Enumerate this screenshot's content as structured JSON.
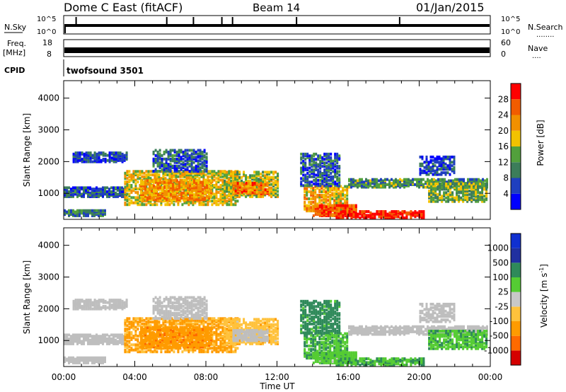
{
  "header": {
    "title": "Dome C East (fitACF)",
    "beam": "Beam 14",
    "date": "01/Jan/2015"
  },
  "status_panels": {
    "nsky_label": "N.Sky",
    "nsearch_label": "N.Search",
    "nsearch_dots": "........",
    "nsky_ticks": [
      "10^5",
      "10^0"
    ],
    "nsearch_ticks": [
      "10^5",
      "10^0"
    ],
    "freq_label_1": "Freq.",
    "freq_label_2": "[MHz]",
    "freq_ticks": [
      "18",
      "8"
    ],
    "nave_label": "Nave",
    "nave_dots": "....",
    "nave_ticks": [
      "60",
      "0"
    ],
    "cpid_label": "CPID",
    "cpid_value": "twofsound 3501"
  },
  "colors": {
    "power_scale": [
      "#0000ff",
      "#1f3fbf",
      "#3c7d5a",
      "#52a03c",
      "#f2c200",
      "#f29000",
      "#f25c00",
      "#ff0000"
    ],
    "velocity_scale": [
      "#d40000",
      "#ff6a00",
      "#ff9b00",
      "#ffc23c",
      "#c8c8c8",
      "#55cc33",
      "#2f8a5a",
      "#2030a0",
      "#1030d0"
    ],
    "ground_scatter": "#bebebe"
  },
  "chart_data": [
    {
      "type": "heatmap",
      "panel": "power",
      "xlabel": "",
      "ylabel": "Slant Range [km]",
      "xlim": [
        "00:00",
        "24:00"
      ],
      "ylim": [
        180,
        4550
      ],
      "x_ticks": [
        "00:00",
        "04:00",
        "08:00",
        "12:00",
        "16:00",
        "20:00",
        "00:00"
      ],
      "y_ticks": [
        1000,
        2000,
        3000,
        4000
      ],
      "colorbar": {
        "label": "Power [dB]",
        "ticks": [
          "28",
          "24",
          "20",
          "16",
          "12",
          "8",
          "4"
        ],
        "range": [
          0,
          32
        ]
      },
      "regions": [
        {
          "t0": 0.0,
          "t1": 2.3,
          "r0": 250,
          "r1": 420,
          "value": 10
        },
        {
          "t0": 0.0,
          "t1": 3.5,
          "r0": 850,
          "r1": 1150,
          "value": 7
        },
        {
          "t0": 0.5,
          "t1": 3.5,
          "r0": 1950,
          "r1": 2250,
          "value": 6
        },
        {
          "t0": 3.4,
          "t1": 9.8,
          "r0": 600,
          "r1": 1700,
          "value": 18
        },
        {
          "t0": 4.3,
          "t1": 8.3,
          "r0": 750,
          "r1": 1400,
          "value": 22
        },
        {
          "t0": 5.0,
          "t1": 8.0,
          "r0": 1650,
          "r1": 2350,
          "value": 7
        },
        {
          "t0": 9.0,
          "t1": 12.0,
          "r0": 850,
          "r1": 1650,
          "value": 16
        },
        {
          "t0": 9.5,
          "t1": 11.5,
          "r0": 950,
          "r1": 1300,
          "value": 24
        },
        {
          "t0": 13.5,
          "t1": 16.0,
          "r0": 400,
          "r1": 1200,
          "value": 20
        },
        {
          "t0": 14.0,
          "t1": 16.5,
          "r0": 250,
          "r1": 600,
          "value": 26
        },
        {
          "t0": 15.3,
          "t1": 20.3,
          "r0": 180,
          "r1": 420,
          "value": 30
        },
        {
          "t0": 13.3,
          "t1": 15.5,
          "r0": 1200,
          "r1": 2200,
          "value": 8
        },
        {
          "t0": 16.0,
          "t1": 23.8,
          "r0": 1150,
          "r1": 1400,
          "value": 11
        },
        {
          "t0": 20.5,
          "t1": 23.8,
          "r0": 700,
          "r1": 1300,
          "value": 14
        },
        {
          "t0": 20.0,
          "t1": 22.0,
          "r0": 1550,
          "r1": 2150,
          "value": 6
        }
      ]
    },
    {
      "type": "heatmap",
      "panel": "velocity",
      "xlabel": "Time UT",
      "ylabel": "Slant Range [km]",
      "xlim": [
        "00:00",
        "24:00"
      ],
      "ylim": [
        180,
        4550
      ],
      "x_ticks": [
        "00:00",
        "04:00",
        "08:00",
        "12:00",
        "16:00",
        "20:00",
        "00:00"
      ],
      "y_ticks": [
        1000,
        2000,
        3000,
        4000
      ],
      "colorbar": {
        "label": "Velocity [m s",
        "label_sup": "-1",
        "label_end": "]",
        "ticks": [
          "1000",
          "500",
          "100",
          "25",
          "-25",
          "-100",
          "-500",
          "-1000"
        ]
      },
      "regions": [
        {
          "t0": 0.0,
          "t1": 2.3,
          "r0": 250,
          "r1": 420,
          "value": "gs"
        },
        {
          "t0": 0.0,
          "t1": 3.5,
          "r0": 850,
          "r1": 1150,
          "value": "gs"
        },
        {
          "t0": 0.5,
          "t1": 3.5,
          "r0": 1950,
          "r1": 2250,
          "value": "gs"
        },
        {
          "t0": 3.4,
          "t1": 9.8,
          "r0": 600,
          "r1": 1700,
          "value": -120
        },
        {
          "t0": 4.3,
          "t1": 8.3,
          "r0": 750,
          "r1": 1400,
          "value": -300
        },
        {
          "t0": 5.0,
          "t1": 8.0,
          "r0": 1650,
          "r1": 2350,
          "value": "gs"
        },
        {
          "t0": 9.0,
          "t1": 12.0,
          "r0": 850,
          "r1": 1650,
          "value": -60
        },
        {
          "t0": 9.5,
          "t1": 11.5,
          "r0": 950,
          "r1": 1300,
          "value": "gs"
        },
        {
          "t0": 13.5,
          "t1": 16.0,
          "r0": 400,
          "r1": 1200,
          "value": 80
        },
        {
          "t0": 14.0,
          "t1": 16.5,
          "r0": 250,
          "r1": 600,
          "value": 60
        },
        {
          "t0": 15.3,
          "t1": 20.3,
          "r0": 180,
          "r1": 420,
          "value": 90
        },
        {
          "t0": 13.3,
          "t1": 15.5,
          "r0": 1200,
          "r1": 2200,
          "value": 200
        },
        {
          "t0": 16.0,
          "t1": 23.8,
          "r0": 1150,
          "r1": 1400,
          "value": "gs"
        },
        {
          "t0": 20.5,
          "t1": 23.8,
          "r0": 700,
          "r1": 1300,
          "value": 70
        },
        {
          "t0": 20.0,
          "t1": 22.0,
          "r0": 1550,
          "r1": 2150,
          "value": "gs"
        }
      ]
    }
  ]
}
